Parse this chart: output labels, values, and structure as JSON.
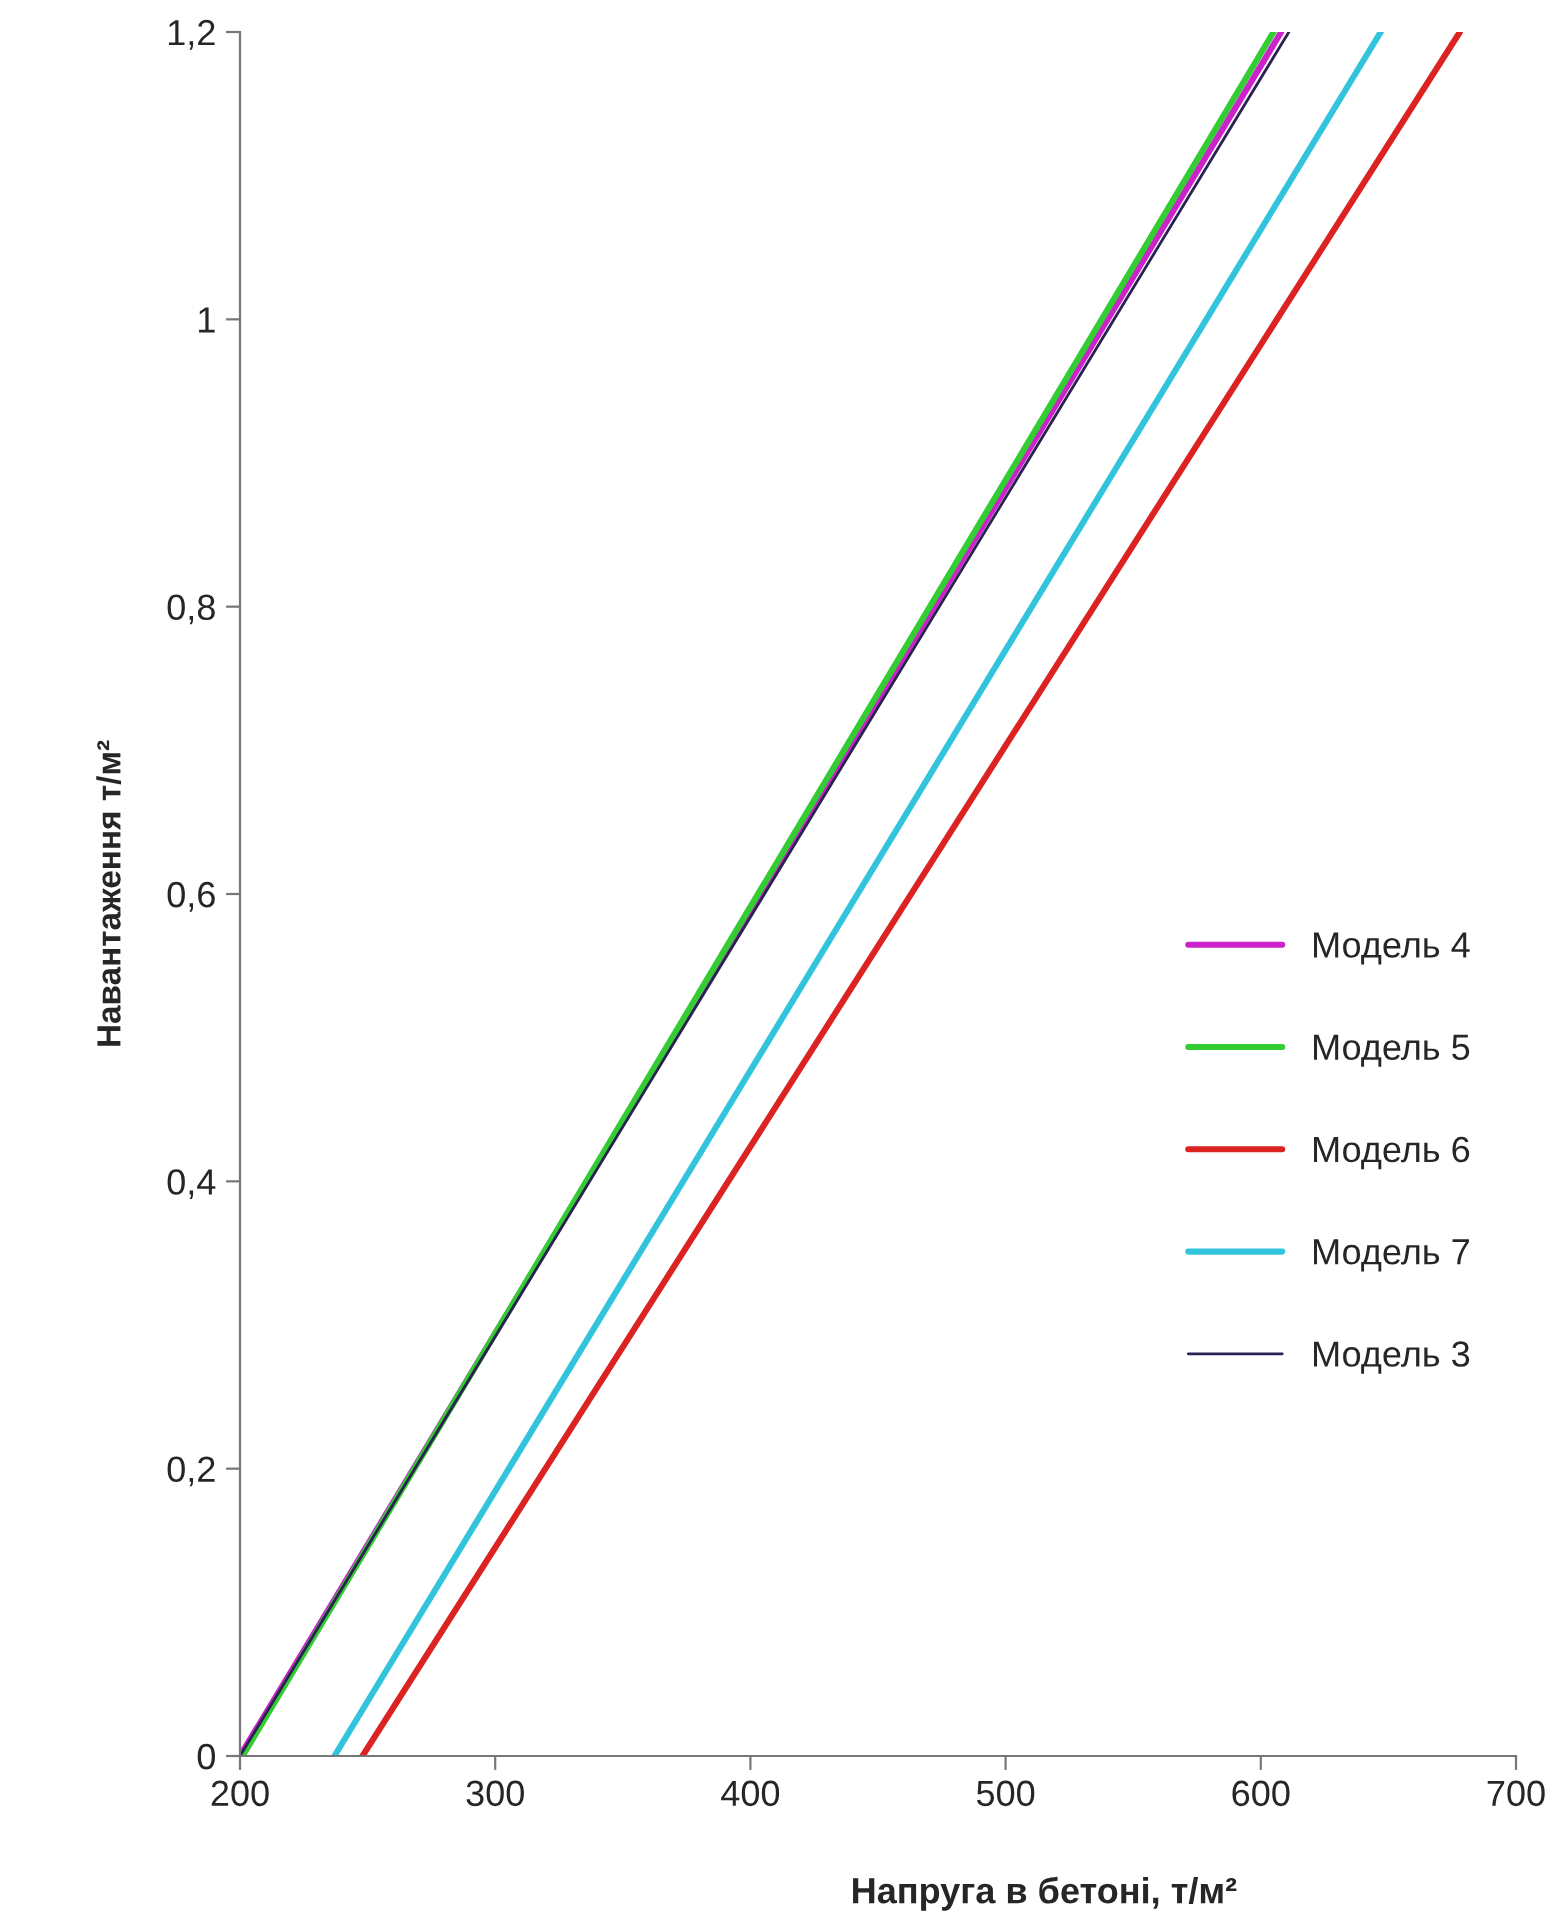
{
  "chart_data": {
    "type": "line",
    "xlabel": "Напруга в бетоні, т/м²",
    "ylabel": "Навантаження т/м²",
    "xlim": [
      200,
      700
    ],
    "xticks": [
      200,
      300,
      400,
      500,
      600,
      700
    ],
    "ylim": [
      0,
      1.2
    ],
    "yticks": [
      0,
      {
        "value": 0.2,
        "label": "0,2"
      },
      {
        "value": 0.4,
        "label": "0,4"
      },
      {
        "value": 0.6,
        "label": "0,6"
      },
      {
        "value": 0.8,
        "label": "0,8"
      },
      {
        "value": 1,
        "label": "1"
      },
      {
        "value": 1.2,
        "label": "1,2"
      }
    ],
    "grid": false,
    "legend": "right",
    "marker": "none",
    "line_style": "solid",
    "series": [
      {
        "name": "Модель 4",
        "color": "#cc22cc",
        "x": [
          200,
          608
        ],
        "values": [
          0,
          1.2
        ]
      },
      {
        "name": "Модель 5",
        "color": "#33cc33",
        "x": [
          201,
          605
        ],
        "values": [
          0,
          1.2
        ]
      },
      {
        "name": "Модель 6",
        "color": "#dd2222",
        "x": [
          248,
          678
        ],
        "values": [
          0,
          1.2
        ]
      },
      {
        "name": "Модель 7",
        "color": "#33c4dd",
        "x": [
          237,
          647
        ],
        "values": [
          0,
          1.2
        ]
      },
      {
        "name": "Модель 3",
        "color": "#2a2250",
        "x": [
          200,
          611
        ],
        "values": [
          0,
          1.2
        ]
      }
    ]
  }
}
